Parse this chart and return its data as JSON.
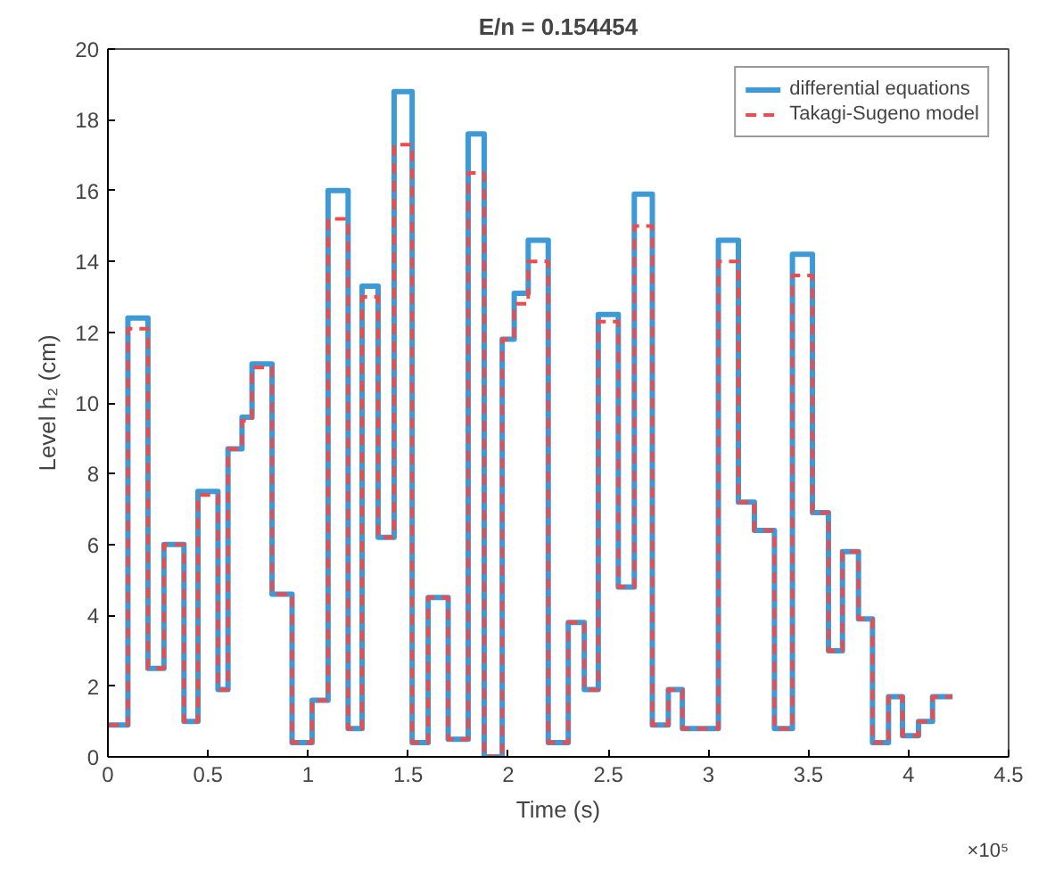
{
  "chart_data": {
    "type": "step",
    "title": "E/n = 0.154454",
    "xlabel": "Time (s)",
    "ylabel": "Level h₂ (cm)",
    "annotations": [
      "×10⁵"
    ],
    "xlim": [
      0,
      4.5
    ],
    "xticks": [
      0,
      0.5,
      1,
      1.5,
      2,
      2.5,
      3,
      3.5,
      4,
      4.5
    ],
    "ylim": [
      0,
      20
    ],
    "yticks": [
      0,
      2,
      4,
      6,
      8,
      10,
      12,
      14,
      16,
      18,
      20
    ],
    "grid": false,
    "legend": "top right",
    "series": [
      {
        "name": "differential equations",
        "color": "#3d9ad6",
        "line_style": "solid",
        "x": [
          0,
          0.1,
          0.2,
          0.28,
          0.38,
          0.45,
          0.55,
          0.6,
          0.67,
          0.72,
          0.82,
          0.92,
          1.02,
          1.1,
          1.2,
          1.27,
          1.35,
          1.43,
          1.52,
          1.6,
          1.7,
          1.8,
          1.88,
          1.97,
          2.03,
          2.1,
          2.2,
          2.3,
          2.38,
          2.45,
          2.55,
          2.63,
          2.72,
          2.8,
          2.87,
          3.05,
          3.15,
          3.23,
          3.33,
          3.42,
          3.52,
          3.6,
          3.67,
          3.75,
          3.82,
          3.9,
          3.97,
          4.05,
          4.12,
          4.22
        ],
        "values": [
          0.9,
          12.4,
          2.5,
          6.0,
          1.0,
          7.5,
          1.9,
          8.7,
          9.6,
          11.1,
          4.6,
          0.4,
          1.6,
          16.0,
          0.8,
          13.3,
          6.2,
          18.8,
          0.4,
          4.5,
          0.5,
          17.6,
          0.0,
          11.8,
          13.1,
          14.6,
          0.4,
          3.8,
          1.9,
          12.5,
          4.8,
          15.9,
          0.9,
          1.9,
          0.8,
          14.6,
          7.2,
          6.4,
          0.8,
          14.2,
          6.9,
          3.0,
          5.8,
          3.9,
          0.4,
          1.7,
          0.6,
          1.0,
          1.7,
          1.7
        ]
      },
      {
        "name": "Takagi-Sugeno model",
        "color": "#f04a4a",
        "line_style": "dashed",
        "x": [
          0,
          0.1,
          0.2,
          0.28,
          0.38,
          0.45,
          0.55,
          0.6,
          0.67,
          0.72,
          0.82,
          0.92,
          1.02,
          1.1,
          1.2,
          1.27,
          1.35,
          1.43,
          1.52,
          1.6,
          1.7,
          1.8,
          1.88,
          1.97,
          2.03,
          2.1,
          2.2,
          2.3,
          2.38,
          2.45,
          2.55,
          2.63,
          2.72,
          2.8,
          2.87,
          3.05,
          3.15,
          3.23,
          3.33,
          3.42,
          3.52,
          3.6,
          3.67,
          3.75,
          3.82,
          3.9,
          3.97,
          4.05,
          4.12,
          4.22
        ],
        "values": [
          0.9,
          12.1,
          2.5,
          6.0,
          1.0,
          7.4,
          1.9,
          8.7,
          9.5,
          11.0,
          4.6,
          0.4,
          1.6,
          15.2,
          0.8,
          13.0,
          6.2,
          17.3,
          0.4,
          4.5,
          0.5,
          16.5,
          0.0,
          11.8,
          12.8,
          14.0,
          0.4,
          3.8,
          1.9,
          12.3,
          4.8,
          15.0,
          0.9,
          1.9,
          0.8,
          14.0,
          7.2,
          6.4,
          0.8,
          13.6,
          6.9,
          3.0,
          5.8,
          3.9,
          0.4,
          1.7,
          0.6,
          1.0,
          1.7,
          1.7
        ]
      }
    ]
  }
}
